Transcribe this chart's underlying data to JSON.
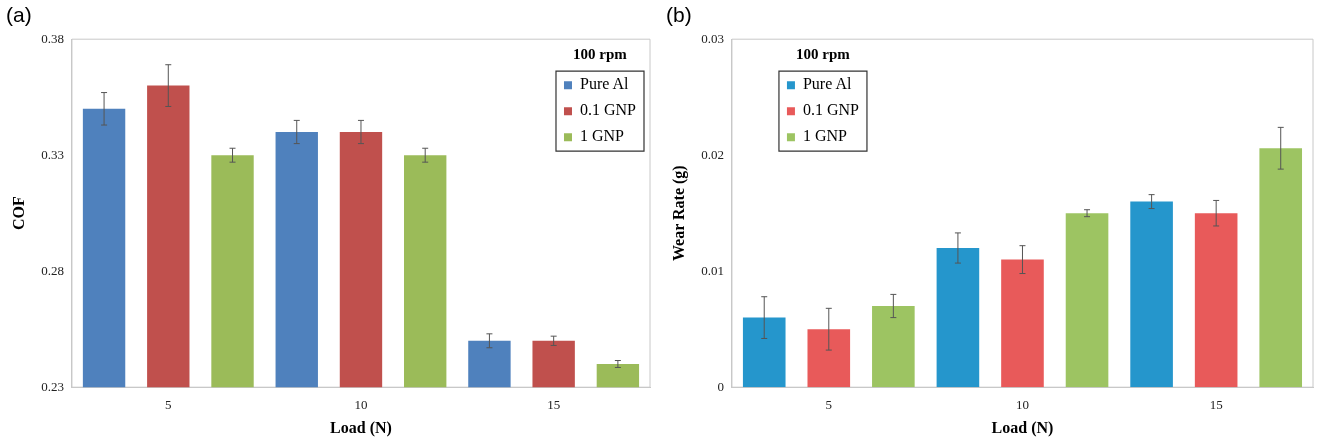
{
  "chart_data": [
    {
      "type": "bar",
      "title": "(a)",
      "xlabel": "Load (N)",
      "ylabel": "COF",
      "legend_title": "100 rpm",
      "legend": "top right",
      "categories": [
        "5",
        "10",
        "15"
      ],
      "ylim": [
        0.23,
        0.38
      ],
      "yticks": [
        0.23,
        0.28,
        0.33,
        0.38
      ],
      "series": [
        {
          "name": "Pure Al",
          "color": "#4f81bd",
          "values": [
            0.35,
            0.34,
            0.25
          ],
          "errors": [
            0.007,
            0.005,
            0.003
          ]
        },
        {
          "name": "0.1 GNP",
          "color": "#c0504d",
          "values": [
            0.36,
            0.34,
            0.25
          ],
          "errors": [
            0.009,
            0.005,
            0.002
          ]
        },
        {
          "name": "1 GNP",
          "color": "#9bbb59",
          "values": [
            0.33,
            0.33,
            0.24
          ],
          "errors": [
            0.003,
            0.003,
            0.0015
          ]
        }
      ]
    },
    {
      "type": "bar",
      "title": "(b)",
      "xlabel": "Load (N)",
      "ylabel": "Wear Rate (g)",
      "legend_title": "100 rpm",
      "legend": "top left",
      "categories": [
        "5",
        "10",
        "15"
      ],
      "ylim": [
        0,
        0.03
      ],
      "yticks": [
        0,
        0.01,
        0.02,
        0.03
      ],
      "series": [
        {
          "name": "Pure Al",
          "color": "#2596cc",
          "values": [
            0.006,
            0.012,
            0.016
          ],
          "errors": [
            0.0018,
            0.0013,
            0.0006
          ]
        },
        {
          "name": "0.1 GNP",
          "color": "#e85a5a",
          "values": [
            0.005,
            0.011,
            0.015
          ],
          "errors": [
            0.0018,
            0.0012,
            0.0011
          ]
        },
        {
          "name": "1 GNP",
          "color": "#9dc462",
          "values": [
            0.007,
            0.015,
            0.0206
          ],
          "errors": [
            0.001,
            0.0003,
            0.0018
          ]
        }
      ]
    }
  ]
}
